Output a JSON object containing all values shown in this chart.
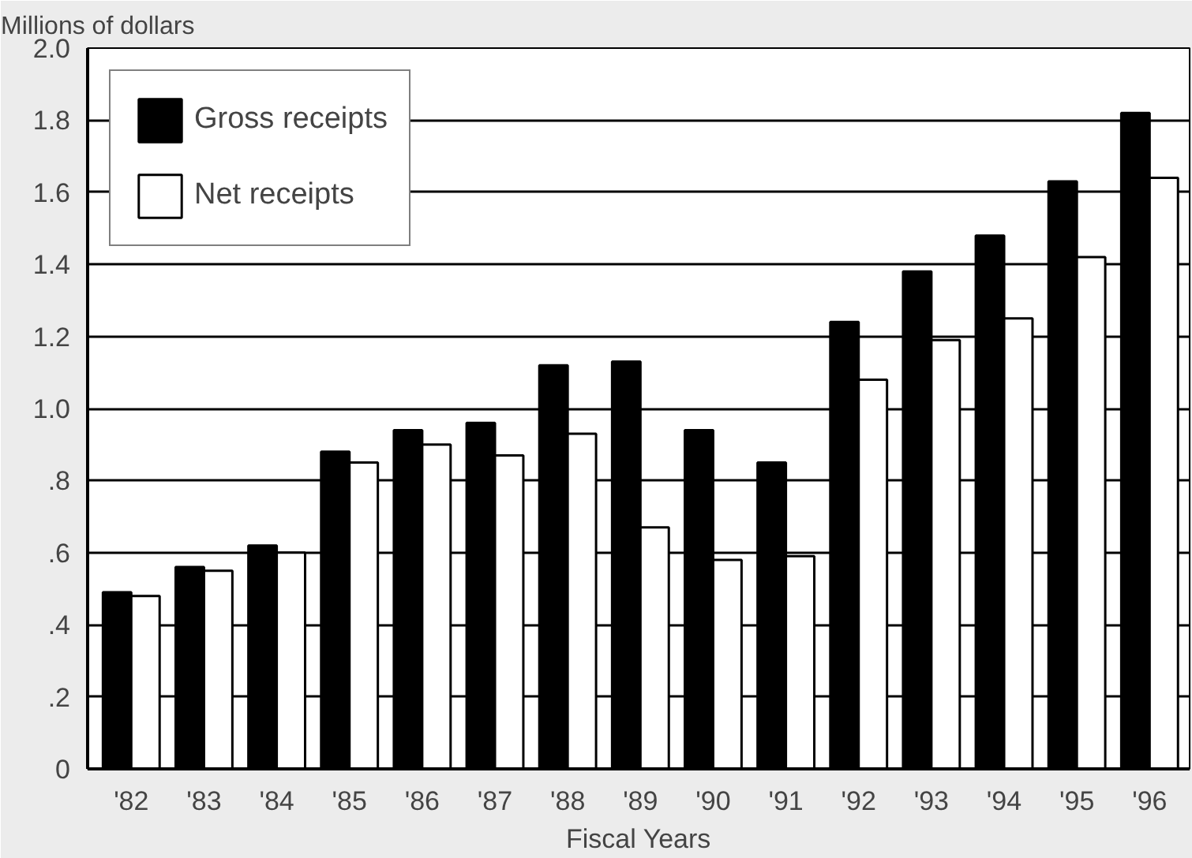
{
  "chart_data": {
    "type": "bar",
    "ylabel": "Millions of dollars",
    "xlabel": "Fiscal Years",
    "categories": [
      "'82",
      "'83",
      "'84",
      "'85",
      "'86",
      "'87",
      "'88",
      "'89",
      "'90",
      "'91",
      "'92",
      "'93",
      "'94",
      "'95",
      "'96"
    ],
    "series": [
      {
        "name": "Gross receipts",
        "color": "#000000",
        "values": [
          0.49,
          0.56,
          0.62,
          0.88,
          0.94,
          0.96,
          1.12,
          1.13,
          0.94,
          0.85,
          1.24,
          1.38,
          1.48,
          1.63,
          1.82
        ]
      },
      {
        "name": "Net receipts",
        "color": "#ffffff",
        "values": [
          0.48,
          0.55,
          0.6,
          0.85,
          0.9,
          0.87,
          0.93,
          0.67,
          0.58,
          0.59,
          1.08,
          1.19,
          1.25,
          1.42,
          1.64
        ]
      }
    ],
    "ylim": [
      0,
      2.0
    ],
    "yticks": [
      0,
      {
        "value": 0.2,
        "label": ".2"
      },
      {
        "value": 0.4,
        "label": ".4"
      },
      {
        "value": 0.6,
        "label": ".6"
      },
      {
        "value": 0.8,
        "label": ".8"
      },
      {
        "value": 1.0,
        "label": "1.0"
      },
      {
        "value": 1.2,
        "label": "1.2"
      },
      {
        "value": 1.4,
        "label": "1.4"
      },
      {
        "value": 1.6,
        "label": "1.6"
      },
      {
        "value": 1.8,
        "label": "1.8"
      },
      {
        "value": 2.0,
        "label": "2.0"
      }
    ],
    "grid": "y",
    "legend": "top left"
  }
}
